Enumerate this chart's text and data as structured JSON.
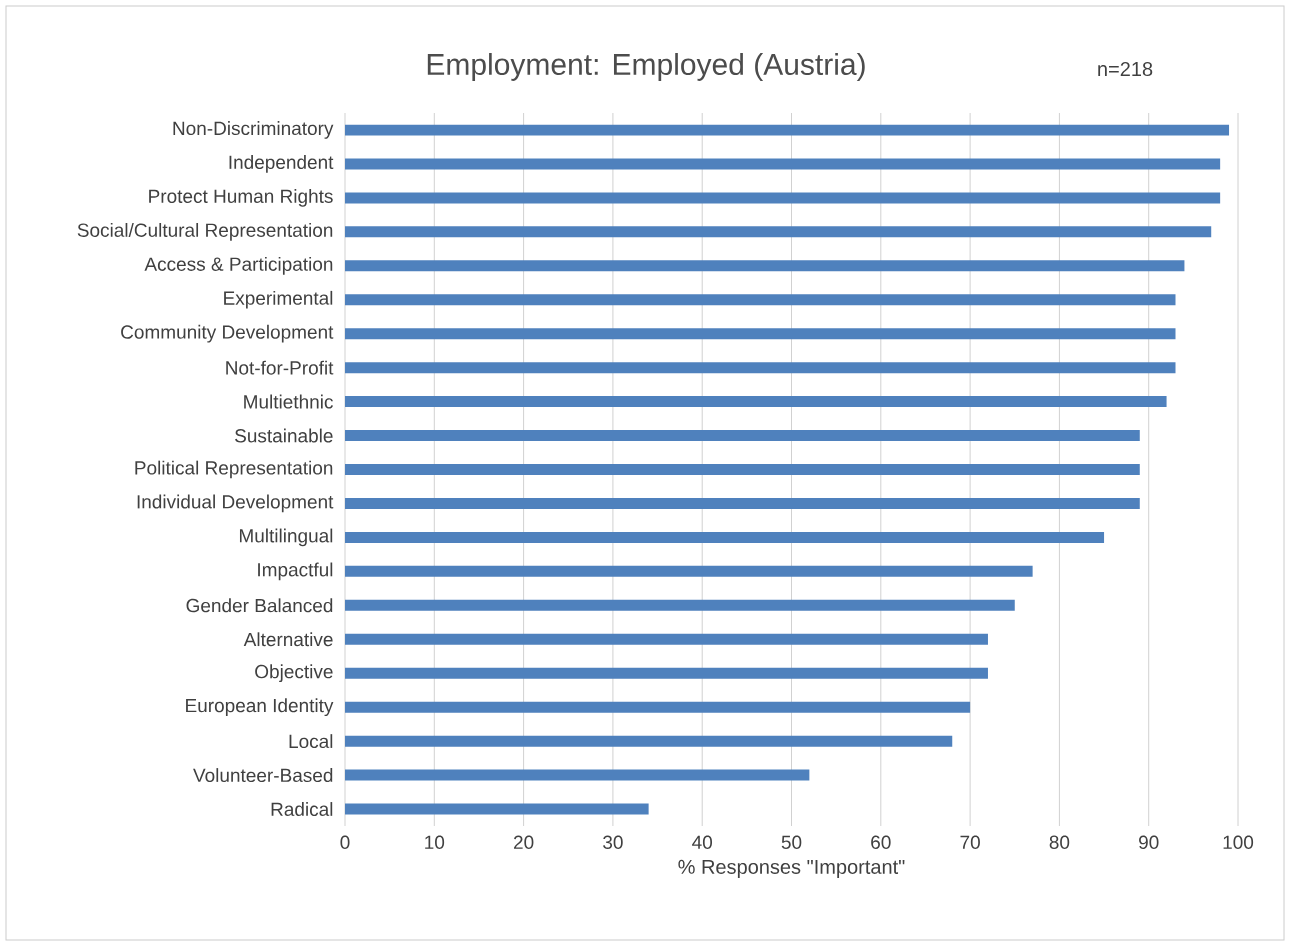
{
  "chart_data": {
    "type": "bar",
    "orientation": "horizontal",
    "title": "Employment: Employed (Austria)",
    "annotations": [
      "n=218"
    ],
    "xlabel": "% Responses \"Important\"",
    "categories": [
      "Non-Discriminatory",
      "Independent",
      "Protect Human Rights",
      "Social/Cultural Representation",
      "Access & Participation",
      "Experimental",
      "Community Development",
      "Not-for-Profit",
      "Multiethnic",
      "Sustainable",
      "Political Representation",
      "Individual Development",
      "Multilingual",
      "Impactful",
      "Gender Balanced",
      "Alternative",
      "Objective",
      "European Identity",
      "Local",
      "Volunteer-Based",
      "Radical"
    ],
    "values": [
      99,
      98,
      98,
      97,
      94,
      93,
      93,
      93,
      92,
      89,
      89,
      89,
      85,
      77,
      75,
      72,
      72,
      70,
      68,
      52,
      34
    ],
    "color": "#4f81bd",
    "xlim": [
      0,
      100
    ],
    "xticks": [
      0,
      10,
      20,
      30,
      40,
      50,
      60,
      70,
      80,
      90,
      100
    ],
    "grid": "x"
  }
}
